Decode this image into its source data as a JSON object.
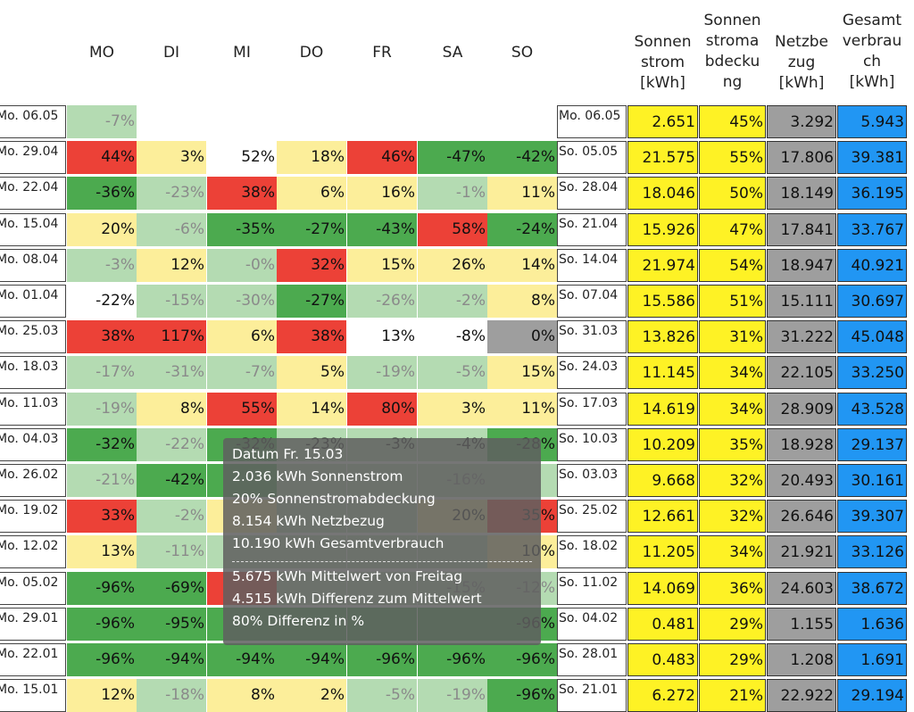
{
  "colors": {
    "red": "#ec4137",
    "dark_green": "#4caa4f",
    "light_green": "#b4dbb2",
    "yellow_light": "#fcee9a",
    "white": "#ffffff",
    "gray": "#9e9e9e",
    "yellow": "#fef225",
    "blue": "#2196f3",
    "muted_text": "#8a8a8a"
  },
  "day_headers": [
    "MO",
    "DI",
    "MI",
    "DO",
    "FR",
    "SA",
    "SO"
  ],
  "summary_headers": [
    [
      "Sonnen",
      "strom",
      "[kWh]"
    ],
    [
      "Sonnen",
      "stroma",
      "bdecku",
      "ng"
    ],
    [
      "Netzbe",
      "zug",
      "[kWh]"
    ],
    [
      "Gesamt",
      "verbrau",
      "ch",
      "[kWh]"
    ]
  ],
  "rows": [
    {
      "week_start": "Mo. 06.05",
      "week_end": "Mo. 06.05",
      "days": [
        {
          "v": "-7%",
          "c": "light_green",
          "m": true
        },
        null,
        null,
        null,
        null,
        null,
        null
      ],
      "sun": "2.651",
      "coverage": "45%",
      "grid": "3.292",
      "total": "5.943"
    },
    {
      "week_start": "Mo. 29.04",
      "week_end": "So. 05.05",
      "days": [
        {
          "v": "44%",
          "c": "red"
        },
        {
          "v": "3%",
          "c": "yellow_light"
        },
        {
          "v": "52%",
          "c": "white"
        },
        {
          "v": "18%",
          "c": "yellow_light"
        },
        {
          "v": "46%",
          "c": "red"
        },
        {
          "v": "-47%",
          "c": "dark_green"
        },
        {
          "v": "-42%",
          "c": "dark_green"
        }
      ],
      "sun": "21.575",
      "coverage": "55%",
      "grid": "17.806",
      "total": "39.381"
    },
    {
      "week_start": "Mo. 22.04",
      "week_end": "So. 28.04",
      "days": [
        {
          "v": "-36%",
          "c": "dark_green"
        },
        {
          "v": "-23%",
          "c": "light_green",
          "m": true
        },
        {
          "v": "38%",
          "c": "red"
        },
        {
          "v": "6%",
          "c": "yellow_light"
        },
        {
          "v": "16%",
          "c": "yellow_light"
        },
        {
          "v": "-1%",
          "c": "light_green",
          "m": true
        },
        {
          "v": "11%",
          "c": "yellow_light"
        }
      ],
      "sun": "18.046",
      "coverage": "50%",
      "grid": "18.149",
      "total": "36.195"
    },
    {
      "week_start": "Mo. 15.04",
      "week_end": "So. 21.04",
      "days": [
        {
          "v": "20%",
          "c": "yellow_light"
        },
        {
          "v": "-6%",
          "c": "light_green",
          "m": true
        },
        {
          "v": "-35%",
          "c": "dark_green"
        },
        {
          "v": "-27%",
          "c": "dark_green"
        },
        {
          "v": "-43%",
          "c": "dark_green"
        },
        {
          "v": "58%",
          "c": "red"
        },
        {
          "v": "-24%",
          "c": "dark_green"
        }
      ],
      "sun": "15.926",
      "coverage": "47%",
      "grid": "17.841",
      "total": "33.767"
    },
    {
      "week_start": "Mo. 08.04",
      "week_end": "So. 14.04",
      "days": [
        {
          "v": "-3%",
          "c": "light_green",
          "m": true
        },
        {
          "v": "12%",
          "c": "yellow_light"
        },
        {
          "v": "-0%",
          "c": "light_green",
          "m": true
        },
        {
          "v": "32%",
          "c": "red"
        },
        {
          "v": "15%",
          "c": "yellow_light"
        },
        {
          "v": "26%",
          "c": "yellow_light"
        },
        {
          "v": "14%",
          "c": "yellow_light"
        }
      ],
      "sun": "21.974",
      "coverage": "54%",
      "grid": "18.947",
      "total": "40.921"
    },
    {
      "week_start": "Mo. 01.04",
      "week_end": "So. 07.04",
      "days": [
        {
          "v": "-22%",
          "c": "white"
        },
        {
          "v": "-15%",
          "c": "light_green",
          "m": true
        },
        {
          "v": "-30%",
          "c": "light_green",
          "m": true
        },
        {
          "v": "-27%",
          "c": "dark_green"
        },
        {
          "v": "-26%",
          "c": "light_green",
          "m": true
        },
        {
          "v": "-2%",
          "c": "light_green",
          "m": true
        },
        {
          "v": "8%",
          "c": "yellow_light"
        }
      ],
      "sun": "15.586",
      "coverage": "51%",
      "grid": "15.111",
      "total": "30.697"
    },
    {
      "week_start": "Mo. 25.03",
      "week_end": "So. 31.03",
      "days": [
        {
          "v": "38%",
          "c": "red"
        },
        {
          "v": "117%",
          "c": "red"
        },
        {
          "v": "6%",
          "c": "yellow_light"
        },
        {
          "v": "38%",
          "c": "red"
        },
        {
          "v": "13%",
          "c": "white"
        },
        {
          "v": "-8%",
          "c": "white"
        },
        {
          "v": "0%",
          "c": "gray"
        }
      ],
      "sun": "13.826",
      "coverage": "31%",
      "grid": "31.222",
      "total": "45.048"
    },
    {
      "week_start": "Mo. 18.03",
      "week_end": "So. 24.03",
      "days": [
        {
          "v": "-17%",
          "c": "light_green",
          "m": true
        },
        {
          "v": "-31%",
          "c": "light_green",
          "m": true
        },
        {
          "v": "-7%",
          "c": "light_green",
          "m": true
        },
        {
          "v": "5%",
          "c": "yellow_light"
        },
        {
          "v": "-19%",
          "c": "light_green",
          "m": true
        },
        {
          "v": "-5%",
          "c": "light_green",
          "m": true
        },
        {
          "v": "15%",
          "c": "yellow_light"
        }
      ],
      "sun": "11.145",
      "coverage": "34%",
      "grid": "22.105",
      "total": "33.250"
    },
    {
      "week_start": "Mo. 11.03",
      "week_end": "So. 17.03",
      "days": [
        {
          "v": "-19%",
          "c": "light_green",
          "m": true
        },
        {
          "v": "8%",
          "c": "yellow_light"
        },
        {
          "v": "55%",
          "c": "red"
        },
        {
          "v": "14%",
          "c": "yellow_light"
        },
        {
          "v": "80%",
          "c": "red"
        },
        {
          "v": "3%",
          "c": "yellow_light"
        },
        {
          "v": "11%",
          "c": "yellow_light"
        }
      ],
      "sun": "14.619",
      "coverage": "34%",
      "grid": "28.909",
      "total": "43.528"
    },
    {
      "week_start": "Mo. 04.03",
      "week_end": "So. 10.03",
      "days": [
        {
          "v": "-32%",
          "c": "dark_green"
        },
        {
          "v": "-22%",
          "c": "light_green",
          "m": true
        },
        {
          "v": "-32%",
          "c": "dark_green"
        },
        {
          "v": "-23%",
          "c": "light_green"
        },
        {
          "v": "-3%",
          "c": "light_green"
        },
        {
          "v": "-4%",
          "c": "light_green"
        },
        {
          "v": "-28%",
          "c": "dark_green"
        }
      ],
      "sun": "10.209",
      "coverage": "35%",
      "grid": "18.928",
      "total": "29.137"
    },
    {
      "week_start": "Mo. 26.02",
      "week_end": "So. 03.03",
      "days": [
        {
          "v": "-21%",
          "c": "light_green",
          "m": true
        },
        {
          "v": "-42%",
          "c": "dark_green"
        },
        {
          "v": "",
          "c": "dark_green"
        },
        {
          "v": "",
          "c": "light_green"
        },
        {
          "v": "",
          "c": "light_green"
        },
        {
          "v": "-16%",
          "c": "light_green",
          "m": true
        },
        {
          "v": "",
          "c": "light_green"
        }
      ],
      "sun": "9.668",
      "coverage": "32%",
      "grid": "20.493",
      "total": "30.161"
    },
    {
      "week_start": "Mo. 19.02",
      "week_end": "So. 25.02",
      "days": [
        {
          "v": "33%",
          "c": "red"
        },
        {
          "v": "-2%",
          "c": "light_green",
          "m": true
        },
        {
          "v": "",
          "c": "yellow_light"
        },
        {
          "v": "",
          "c": "light_green"
        },
        {
          "v": "",
          "c": "light_green"
        },
        {
          "v": "20%",
          "c": "yellow_light"
        },
        {
          "v": "35%",
          "c": "red"
        }
      ],
      "sun": "12.661",
      "coverage": "32%",
      "grid": "26.646",
      "total": "39.307"
    },
    {
      "week_start": "Mo. 12.02",
      "week_end": "So. 18.02",
      "days": [
        {
          "v": "13%",
          "c": "yellow_light"
        },
        {
          "v": "-11%",
          "c": "light_green",
          "m": true
        },
        {
          "v": "",
          "c": "light_green"
        },
        {
          "v": "",
          "c": "light_green"
        },
        {
          "v": "",
          "c": "light_green"
        },
        {
          "v": "",
          "c": "light_green"
        },
        {
          "v": "10%",
          "c": "yellow_light"
        }
      ],
      "sun": "11.205",
      "coverage": "34%",
      "grid": "21.921",
      "total": "33.126"
    },
    {
      "week_start": "Mo. 05.02",
      "week_end": "So. 11.02",
      "days": [
        {
          "v": "-96%",
          "c": "dark_green"
        },
        {
          "v": "-69%",
          "c": "dark_green"
        },
        {
          "v": "",
          "c": "red"
        },
        {
          "v": "",
          "c": "light_green"
        },
        {
          "v": "",
          "c": "light_green"
        },
        {
          "v": "-15%",
          "c": "light_green",
          "m": true
        },
        {
          "v": "-12%",
          "c": "light_green",
          "m": true
        }
      ],
      "sun": "14.069",
      "coverage": "36%",
      "grid": "24.603",
      "total": "38.672"
    },
    {
      "week_start": "Mo. 29.01",
      "week_end": "So. 04.02",
      "days": [
        {
          "v": "-96%",
          "c": "dark_green"
        },
        {
          "v": "-95%",
          "c": "dark_green"
        },
        {
          "v": "",
          "c": "dark_green"
        },
        {
          "v": "",
          "c": "dark_green"
        },
        {
          "v": "",
          "c": "dark_green"
        },
        {
          "v": "",
          "c": "dark_green"
        },
        {
          "v": "-96%",
          "c": "dark_green"
        }
      ],
      "sun": "0.481",
      "coverage": "29%",
      "grid": "1.155",
      "total": "1.636"
    },
    {
      "week_start": "Mo. 22.01",
      "week_end": "So. 28.01",
      "days": [
        {
          "v": "-96%",
          "c": "dark_green"
        },
        {
          "v": "-94%",
          "c": "dark_green"
        },
        {
          "v": "-94%",
          "c": "dark_green"
        },
        {
          "v": "-94%",
          "c": "dark_green"
        },
        {
          "v": "-96%",
          "c": "dark_green"
        },
        {
          "v": "-96%",
          "c": "dark_green"
        },
        {
          "v": "-96%",
          "c": "dark_green"
        }
      ],
      "sun": "0.483",
      "coverage": "29%",
      "grid": "1.208",
      "total": "1.691"
    },
    {
      "week_start": "Mo. 15.01",
      "week_end": "So. 21.01",
      "days": [
        {
          "v": "12%",
          "c": "yellow_light"
        },
        {
          "v": "-18%",
          "c": "light_green",
          "m": true
        },
        {
          "v": "8%",
          "c": "yellow_light"
        },
        {
          "v": "2%",
          "c": "yellow_light"
        },
        {
          "v": "-5%",
          "c": "light_green",
          "m": true
        },
        {
          "v": "-19%",
          "c": "light_green",
          "m": true
        },
        {
          "v": "-96%",
          "c": "dark_green"
        }
      ],
      "sun": "6.272",
      "coverage": "21%",
      "grid": "22.922",
      "total": "29.194"
    }
  ],
  "tooltip": {
    "title": "Datum Fr. 15.03",
    "sun": "2.036 kWh Sonnenstrom",
    "coverage": "20% Sonnenstromabdeckung",
    "grid": "8.154 kWh Netzbezug",
    "total": "10.190 kWh Gesamtverbrauch",
    "mean": "5.675 kWh Mittelwert von Freitag",
    "diff": "4.515 kWh Differenz zum Mittelwert",
    "pct": "80% Differenz in %"
  }
}
